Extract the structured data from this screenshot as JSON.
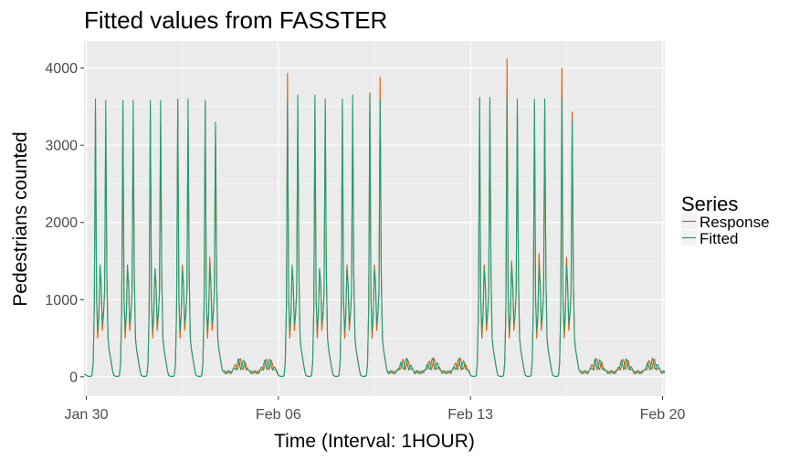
{
  "chart_data": {
    "type": "line",
    "title": "Fitted values from FASSTER",
    "xlabel": "Time (Interval: 1HOUR)",
    "ylabel": "Pedestrians counted",
    "x_range": [
      "2017-01-29T22:00",
      "2017-02-20T02:00"
    ],
    "x_ticks": [
      {
        "date": "2017-01-30",
        "label": "Jan 30"
      },
      {
        "date": "2017-02-06",
        "label": "Feb 06"
      },
      {
        "date": "2017-02-13",
        "label": "Feb 13"
      },
      {
        "date": "2017-02-20",
        "label": "Feb 20"
      }
    ],
    "ylim": [
      -250,
      4350
    ],
    "y_ticks": [
      0,
      1000,
      2000,
      3000,
      4000
    ],
    "grid": true,
    "legend": {
      "title": "Series",
      "placement": "right"
    },
    "series": [
      {
        "name": "Response",
        "color": "#d95f02",
        "daily_peaks": [
          {
            "date": "2017-01-30",
            "am": 3450,
            "mid": 1400,
            "pm": 3200
          },
          {
            "date": "2017-01-31",
            "am": 3550,
            "mid": 1400,
            "pm": 3150
          },
          {
            "date": "2017-02-01",
            "am": 3500,
            "mid": 1400,
            "pm": 3300
          },
          {
            "date": "2017-02-02",
            "am": 3550,
            "mid": 1450,
            "pm": 3250
          },
          {
            "date": "2017-02-03",
            "am": 3550,
            "mid": 1550,
            "pm": 3250
          },
          {
            "date": "2017-02-06",
            "am": 3930,
            "mid": 1400,
            "pm": 3450
          },
          {
            "date": "2017-02-07",
            "am": 3600,
            "mid": 1400,
            "pm": 3450
          },
          {
            "date": "2017-02-08",
            "am": 3550,
            "mid": 1450,
            "pm": 3350
          },
          {
            "date": "2017-02-09",
            "am": 3680,
            "mid": 1450,
            "pm": 3880
          },
          {
            "date": "2017-02-13",
            "am": 3600,
            "mid": 1450,
            "pm": 3450
          },
          {
            "date": "2017-02-14",
            "am": 4120,
            "mid": 1500,
            "pm": 3400
          },
          {
            "date": "2017-02-15",
            "am": 3550,
            "mid": 1600,
            "pm": 3550
          },
          {
            "date": "2017-02-16",
            "am": 4000,
            "mid": 1550,
            "pm": 3430
          }
        ]
      },
      {
        "name": "Fitted",
        "color": "#1b9e77",
        "daily_peaks": [
          {
            "date": "2017-01-30",
            "am": 3600,
            "mid": 1450,
            "pm": 3580
          },
          {
            "date": "2017-01-31",
            "am": 3580,
            "mid": 1450,
            "pm": 3580
          },
          {
            "date": "2017-02-01",
            "am": 3580,
            "mid": 1400,
            "pm": 3580
          },
          {
            "date": "2017-02-02",
            "am": 3600,
            "mid": 1400,
            "pm": 3600
          },
          {
            "date": "2017-02-03",
            "am": 3580,
            "mid": 1450,
            "pm": 3300
          },
          {
            "date": "2017-02-06",
            "am": 3550,
            "mid": 1450,
            "pm": 3650
          },
          {
            "date": "2017-02-07",
            "am": 3650,
            "mid": 1400,
            "pm": 3600
          },
          {
            "date": "2017-02-08",
            "am": 3600,
            "mid": 1400,
            "pm": 3650
          },
          {
            "date": "2017-02-09",
            "am": 3650,
            "mid": 1400,
            "pm": 3600
          },
          {
            "date": "2017-02-13",
            "am": 3620,
            "mid": 1400,
            "pm": 3620
          },
          {
            "date": "2017-02-14",
            "am": 3620,
            "mid": 1450,
            "pm": 3600
          },
          {
            "date": "2017-02-15",
            "am": 3600,
            "mid": 1450,
            "pm": 3600
          },
          {
            "date": "2017-02-16",
            "am": 3600,
            "mid": 1450,
            "pm": 3330
          }
        ]
      }
    ],
    "weekend_level": {
      "min": 0,
      "max": 250
    }
  },
  "colors": {
    "panel": "#ebebeb",
    "grid_major": "#ffffff",
    "grid_minor": "#f5f5f5",
    "tick_text": "#4d4d4d",
    "legend_key_bg": "#f2f2f2"
  }
}
